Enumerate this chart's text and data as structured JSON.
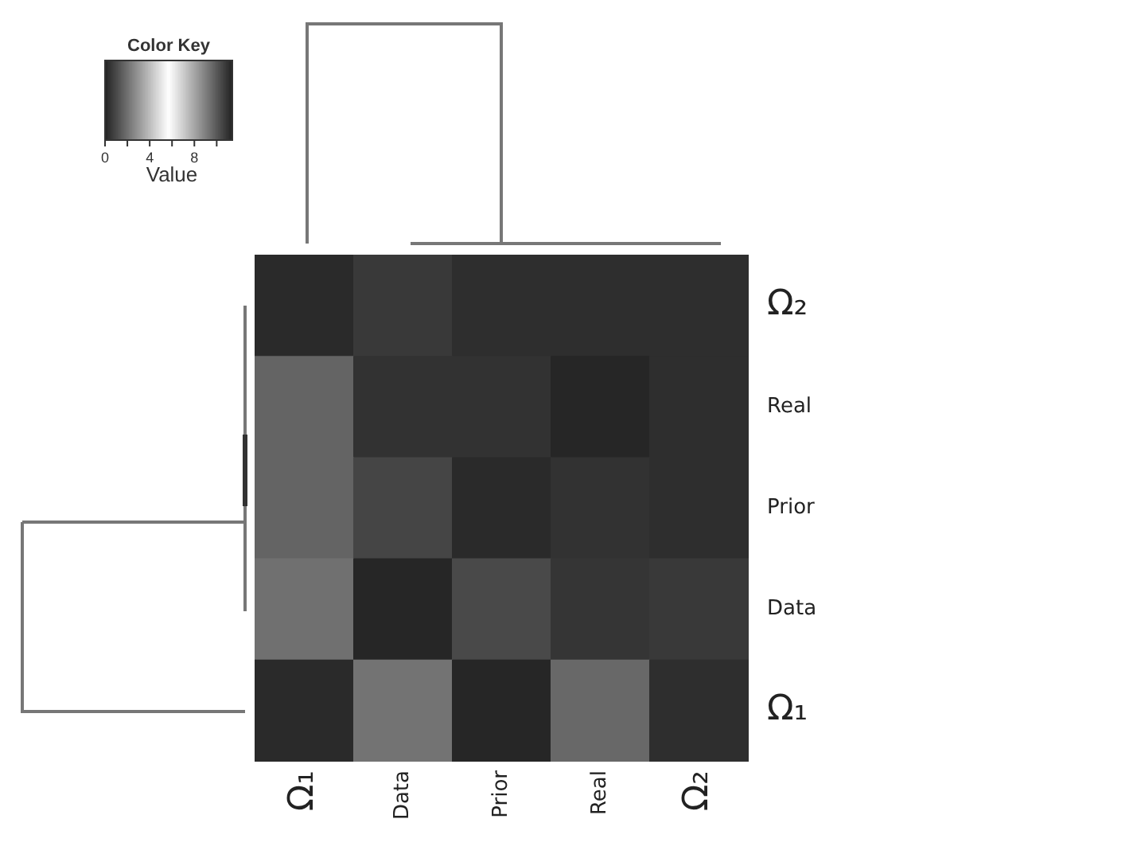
{
  "chart_data": {
    "type": "heatmap",
    "legend_title": "Color Key",
    "clabel": "Value",
    "categories": [
      "Ω₁",
      "Data",
      "Prior",
      "Real",
      "Ω₂"
    ],
    "y_categories": [
      "Ω₂",
      "Real",
      "Prior",
      "Data",
      "Ω₁"
    ],
    "cells": [
      [
        0.2,
        0.6,
        0.3,
        0.3,
        0.3
      ],
      [
        1.7,
        0.4,
        0.4,
        0.1,
        0.3
      ],
      [
        1.7,
        0.9,
        0.2,
        0.4,
        0.3
      ],
      [
        2.0,
        0.1,
        1.0,
        0.5,
        0.6
      ],
      [
        0.2,
        2.1,
        0.1,
        1.8,
        0.3
      ]
    ],
    "clim": [
      0,
      11.4
    ],
    "cticks": [
      0,
      {
        "value": 2,
        "label": null
      },
      4,
      {
        "value": 6,
        "label": null
      },
      8,
      {
        "value": 10,
        "label": null
      }
    ]
  }
}
